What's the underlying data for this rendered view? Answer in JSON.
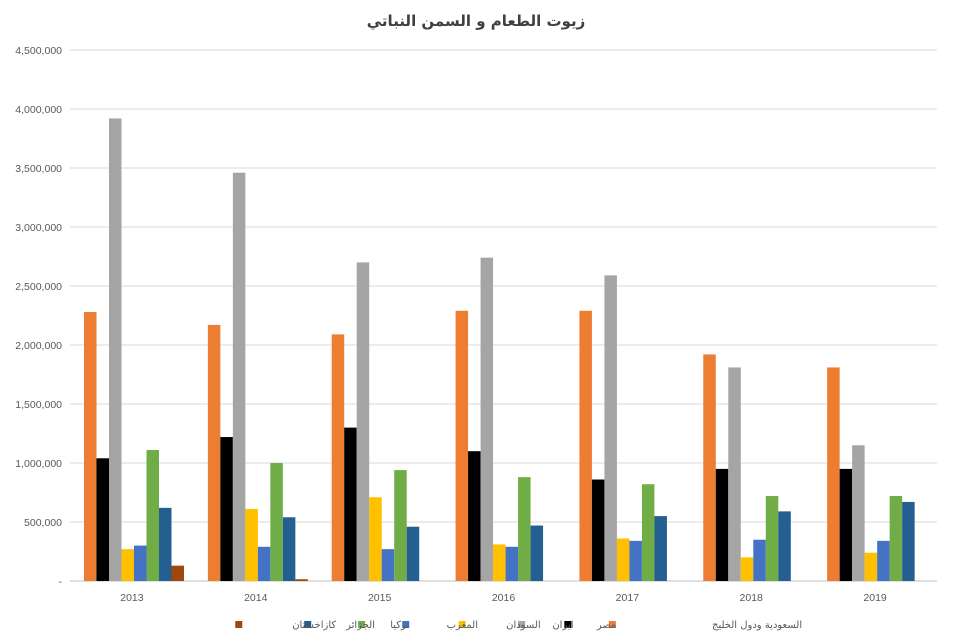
{
  "chart_data": {
    "type": "bar",
    "title": "زيوت الطعام و السمن النباتي",
    "xlabel": "",
    "ylabel": "",
    "categories": [
      "2013",
      "2014",
      "2015",
      "2016",
      "2017",
      "2018",
      "2019"
    ],
    "ylim": [
      0,
      4500000
    ],
    "yticks": [
      "-",
      "500,000",
      "1,000,000",
      "1,500,000",
      "2,000,000",
      "2,500,000",
      "3,000,000",
      "3,500,000",
      "4,000,000",
      "4,500,000"
    ],
    "grid": true,
    "legend_position": "bottom",
    "series": [
      {
        "name": "السعودية ودول الخليج",
        "color": "#ED7D31",
        "values": [
          2280000,
          2170000,
          2090000,
          2290000,
          2290000,
          1920000,
          1810000
        ]
      },
      {
        "name": "مصر",
        "color": "#000000",
        "values": [
          1040000,
          1220000,
          1300000,
          1100000,
          860000,
          950000,
          950000
        ]
      },
      {
        "name": "ايران",
        "color": "#A5A5A5",
        "values": [
          3920000,
          3460000,
          2700000,
          2740000,
          2590000,
          1810000,
          1150000
        ]
      },
      {
        "name": "السودان",
        "color": "#FFC000",
        "values": [
          270000,
          610000,
          710000,
          310000,
          360000,
          200000,
          240000
        ]
      },
      {
        "name": "المغرب",
        "color": "#4472C4",
        "values": [
          300000,
          290000,
          270000,
          290000,
          340000,
          350000,
          340000
        ]
      },
      {
        "name": "تركيا",
        "color": "#70AD47",
        "values": [
          1110000,
          1000000,
          940000,
          880000,
          820000,
          720000,
          720000
        ]
      },
      {
        "name": "الجزائر",
        "color": "#255E91",
        "values": [
          620000,
          540000,
          460000,
          470000,
          550000,
          590000,
          670000
        ]
      },
      {
        "name": "كازاخستان",
        "color": "#9E480E",
        "values": [
          130000,
          15000,
          0,
          0,
          0,
          0,
          0
        ]
      }
    ]
  }
}
